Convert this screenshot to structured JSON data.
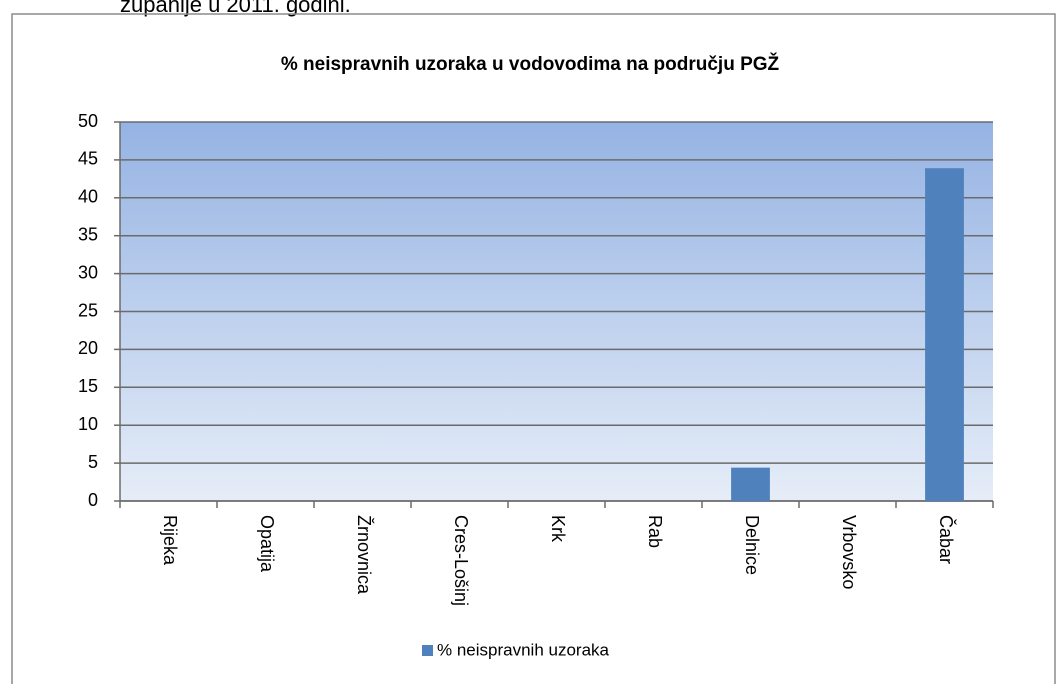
{
  "caption": "županije u 2011. godini.",
  "chart_data": {
    "type": "bar",
    "title": "% neispravnih uzoraka u vodovodima na području PGŽ",
    "categories": [
      "Rijeka",
      "Opatija",
      "Žrnovnica",
      "Cres-Lošinj",
      "Krk",
      "Rab",
      "Delnice",
      "Vrbovsko",
      "Čabar"
    ],
    "series": [
      {
        "name": "% neispravnih uzoraka",
        "color": "#4f81bd",
        "values": [
          0,
          0,
          0,
          0,
          0,
          0,
          4.4,
          0,
          43.9
        ]
      }
    ],
    "ylim": [
      0,
      50
    ],
    "yticks": [
      0,
      5,
      10,
      15,
      20,
      25,
      30,
      35,
      40,
      45,
      50
    ],
    "grid": true,
    "legend": "bottom"
  }
}
